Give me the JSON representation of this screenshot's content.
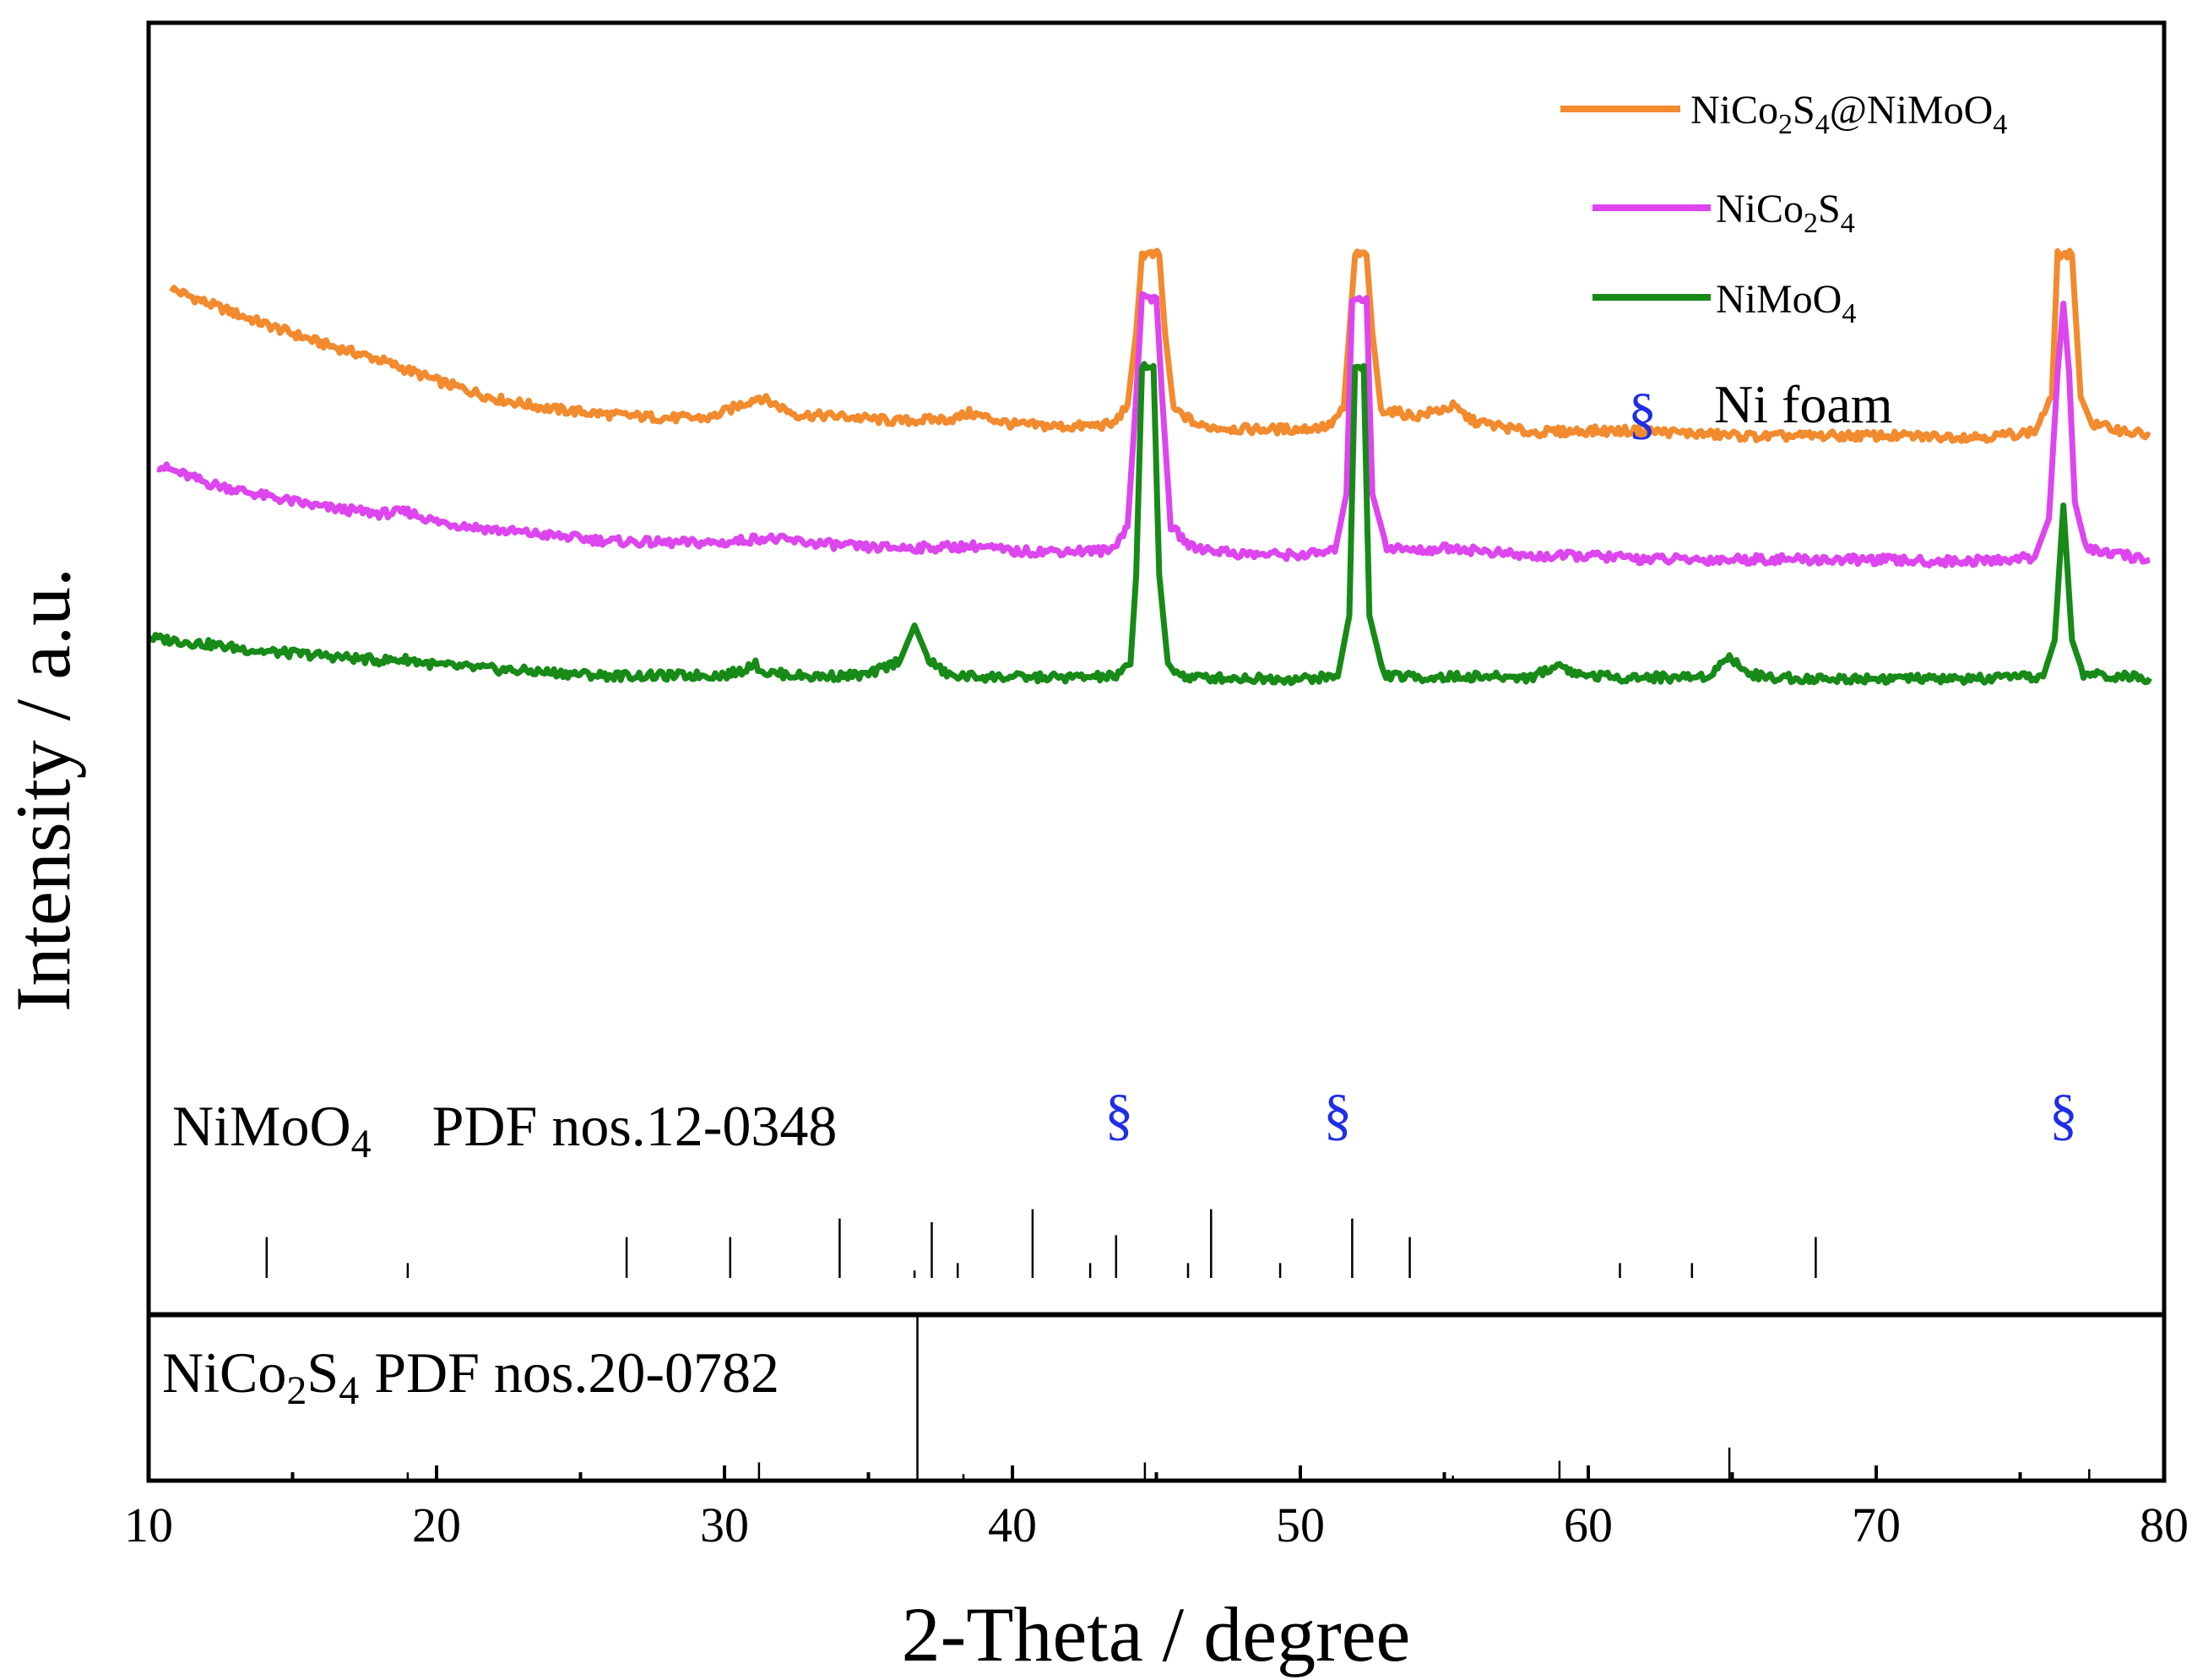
{
  "chart_data": {
    "type": "line",
    "title": "",
    "xlabel": "2-Theta / degree",
    "ylabel": "Intensity / a.u.",
    "xlim": [
      10,
      80
    ],
    "ylim": [
      0,
      100
    ],
    "x_ticks": [
      10,
      20,
      30,
      40,
      50,
      60,
      70,
      80
    ],
    "x_tick_labels": [
      "10",
      "20",
      "30",
      "40",
      "50",
      "60",
      "70",
      "80"
    ],
    "grid": false,
    "legend_position": "top-right",
    "series": [
      {
        "name": "NiCo2S4@NiMoO4",
        "label_main": "NiCo",
        "label_sub1": "2",
        "label_mid": "S",
        "label_sub2": "4",
        "label_tail": "@NiMoO",
        "label_sub3": "4",
        "color": "#f28a2e",
        "points": [
          [
            10.8,
            95.3
          ],
          [
            12,
            93.6
          ],
          [
            14,
            91.0
          ],
          [
            16,
            88.6
          ],
          [
            18,
            86.6
          ],
          [
            20,
            84.0
          ],
          [
            22,
            81.8
          ],
          [
            24,
            80.5
          ],
          [
            26,
            79.8
          ],
          [
            28,
            79.4
          ],
          [
            29.5,
            79.4
          ],
          [
            31.2,
            82.0
          ],
          [
            32.5,
            79.8
          ],
          [
            34,
            79.6
          ],
          [
            36,
            79.0
          ],
          [
            38,
            79.3
          ],
          [
            38.5,
            80.0
          ],
          [
            40,
            78.6
          ],
          [
            42,
            78.3
          ],
          [
            43.5,
            78.6
          ],
          [
            44,
            81.0
          ],
          [
            44.3,
            90
          ],
          [
            44.5,
            99.5
          ],
          [
            45.1,
            99.5
          ],
          [
            45.3,
            90
          ],
          [
            45.6,
            80.5
          ],
          [
            46.5,
            78.4
          ],
          [
            48,
            78.0
          ],
          [
            50,
            78.0
          ],
          [
            51,
            78.4
          ],
          [
            51.5,
            80.5
          ],
          [
            51.7,
            90
          ],
          [
            51.9,
            99.5
          ],
          [
            52.3,
            99.5
          ],
          [
            52.5,
            90
          ],
          [
            52.8,
            80.5
          ],
          [
            54,
            79.6
          ],
          [
            55.3,
            80.8
          ],
          [
            56,
            79.0
          ],
          [
            58,
            77.6
          ],
          [
            60,
            77.8
          ],
          [
            62,
            77.8
          ],
          [
            64,
            77.4
          ],
          [
            66,
            77.1
          ],
          [
            68,
            77.2
          ],
          [
            70,
            77.2
          ],
          [
            72,
            77.1
          ],
          [
            74,
            77.1
          ],
          [
            75.5,
            77.7
          ],
          [
            76.1,
            82
          ],
          [
            76.3,
            99.5
          ],
          [
            76.8,
            99.5
          ],
          [
            77.1,
            82
          ],
          [
            77.5,
            78.6
          ],
          [
            79.5,
            77.2
          ]
        ]
      },
      {
        "name": "NiCo2S4",
        "label_main": "NiCo",
        "label_sub1": "2",
        "label_mid": "S",
        "label_sub2": "4",
        "color": "#dd45ee",
        "points": [
          [
            10.3,
            73.6
          ],
          [
            12,
            71.4
          ],
          [
            14,
            69.8
          ],
          [
            16,
            68.4
          ],
          [
            18,
            67.6
          ],
          [
            19,
            67.8
          ],
          [
            20,
            66.6
          ],
          [
            22,
            65.6
          ],
          [
            24,
            64.9
          ],
          [
            26,
            64.2
          ],
          [
            28,
            64.0
          ],
          [
            30,
            64.0
          ],
          [
            31.3,
            64.6
          ],
          [
            33,
            64.0
          ],
          [
            35,
            63.4
          ],
          [
            37,
            63.4
          ],
          [
            38.8,
            63.6
          ],
          [
            40,
            62.9
          ],
          [
            42,
            63.0
          ],
          [
            43.4,
            63.0
          ],
          [
            44,
            66
          ],
          [
            44.3,
            82
          ],
          [
            44.5,
            94.2
          ],
          [
            45,
            94.2
          ],
          [
            45.2,
            82
          ],
          [
            45.5,
            66
          ],
          [
            46.2,
            63.5
          ],
          [
            48,
            62.6
          ],
          [
            50,
            62.5
          ],
          [
            51.2,
            62.9
          ],
          [
            51.6,
            70
          ],
          [
            51.8,
            94.2
          ],
          [
            52.3,
            94.2
          ],
          [
            52.5,
            70
          ],
          [
            53,
            63.5
          ],
          [
            54,
            63.0
          ],
          [
            55.3,
            63.4
          ],
          [
            56,
            63.1
          ],
          [
            58,
            62.3
          ],
          [
            60,
            62.4
          ],
          [
            62,
            62.0
          ],
          [
            64,
            61.9
          ],
          [
            66,
            62.0
          ],
          [
            68,
            61.9
          ],
          [
            70,
            61.9
          ],
          [
            72,
            61.7
          ],
          [
            74,
            61.8
          ],
          [
            75.5,
            62.2
          ],
          [
            76,
            67
          ],
          [
            76.3,
            85
          ],
          [
            76.5,
            93.5
          ],
          [
            76.7,
            85
          ],
          [
            76.9,
            69
          ],
          [
            77.3,
            63.2
          ],
          [
            79.5,
            61.9
          ]
        ]
      },
      {
        "name": "NiMoO4",
        "label_main": "NiMoO",
        "label_sub1": "4",
        "color": "#178a17",
        "points": [
          [
            10,
            52.3
          ],
          [
            12,
            51.5
          ],
          [
            14,
            50.6
          ],
          [
            16,
            50.1
          ],
          [
            18,
            49.5
          ],
          [
            19,
            49.6
          ],
          [
            20,
            48.9
          ],
          [
            22,
            48.4
          ],
          [
            24,
            48.0
          ],
          [
            26,
            47.6
          ],
          [
            28,
            47.6
          ],
          [
            30,
            47.7
          ],
          [
            30.6,
            48.2
          ],
          [
            31,
            49.2
          ],
          [
            31.4,
            48.0
          ],
          [
            33,
            47.5
          ],
          [
            35,
            47.7
          ],
          [
            36.1,
            49.5
          ],
          [
            36.6,
            53.8
          ],
          [
            37.1,
            49.5
          ],
          [
            37.8,
            47.6
          ],
          [
            40,
            47.4
          ],
          [
            42,
            47.4
          ],
          [
            43.6,
            47.5
          ],
          [
            44.1,
            49
          ],
          [
            44.3,
            60
          ],
          [
            44.5,
            85.8
          ],
          [
            44.9,
            85.8
          ],
          [
            45.1,
            60
          ],
          [
            45.4,
            49
          ],
          [
            46,
            47.4
          ],
          [
            48,
            47.3
          ],
          [
            50,
            47.2
          ],
          [
            51.3,
            47.5
          ],
          [
            51.7,
            55
          ],
          [
            51.9,
            85.8
          ],
          [
            52.2,
            85.8
          ],
          [
            52.4,
            55
          ],
          [
            52.9,
            47.7
          ],
          [
            54,
            47.4
          ],
          [
            56,
            47.5
          ],
          [
            58,
            47.4
          ],
          [
            58.5,
            48.2
          ],
          [
            59,
            49.0
          ],
          [
            59.6,
            47.8
          ],
          [
            61,
            47.4
          ],
          [
            63,
            47.4
          ],
          [
            64,
            47.5
          ],
          [
            64.5,
            48.5
          ],
          [
            64.9,
            50.2
          ],
          [
            65.4,
            48.2
          ],
          [
            66,
            47.5
          ],
          [
            68,
            47.2
          ],
          [
            70,
            47.3
          ],
          [
            72,
            47.2
          ],
          [
            74,
            47.2
          ],
          [
            75.8,
            47.5
          ],
          [
            76.2,
            52
          ],
          [
            76.5,
            68.6
          ],
          [
            76.8,
            52
          ],
          [
            77.2,
            47.8
          ],
          [
            79.5,
            47.3
          ]
        ]
      }
    ],
    "reference_patterns": [
      {
        "name": "NiMoO4 PDF nos.12-0348",
        "label_main": "NiMoO",
        "label_sub": "4",
        "label_tail": "PDF nos.12-0348",
        "peaks": [
          [
            14.1,
            22
          ],
          [
            19.0,
            8
          ],
          [
            26.6,
            22
          ],
          [
            30.2,
            22
          ],
          [
            34.0,
            32
          ],
          [
            36.6,
            4
          ],
          [
            37.2,
            30
          ],
          [
            38.1,
            8
          ],
          [
            40.7,
            37
          ],
          [
            42.7,
            8
          ],
          [
            43.6,
            23
          ],
          [
            46.1,
            8
          ],
          [
            46.9,
            37
          ],
          [
            49.3,
            8
          ],
          [
            51.8,
            32
          ],
          [
            53.8,
            22
          ],
          [
            61.1,
            8
          ],
          [
            63.6,
            8
          ],
          [
            67.9,
            22
          ]
        ]
      },
      {
        "name": "NiCo2S4 PDF nos.20-0782",
        "label_main": "NiCo",
        "label_sub1": "2",
        "label_mid": "S",
        "label_sub2": "4",
        "label_tail": "PDF nos.20-0782",
        "peaks": [
          [
            19.0,
            5
          ],
          [
            31.2,
            11
          ],
          [
            36.7,
            100
          ],
          [
            38.3,
            4
          ],
          [
            44.6,
            11
          ],
          [
            55.3,
            3
          ],
          [
            59.0,
            12
          ],
          [
            64.9,
            20
          ],
          [
            77.4,
            7
          ]
        ]
      }
    ],
    "annotations": [
      {
        "symbol": "§",
        "x": 43.7,
        "label": "Ni foam peak"
      },
      {
        "symbol": "§",
        "x": 51.3,
        "label": "Ni foam peak"
      },
      {
        "symbol": "§",
        "x": 76.5,
        "label": "Ni foam peak"
      }
    ],
    "legend": {
      "marker_symbol": "§",
      "marker_label": "Ni foam",
      "marker_color": "#1f2ee6"
    }
  }
}
